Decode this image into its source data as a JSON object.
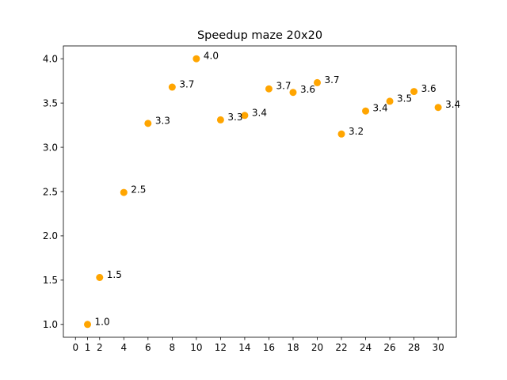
{
  "chart_data": {
    "type": "scatter",
    "title": "Speedup maze 20x20",
    "xlabel": "",
    "ylabel": "",
    "x": [
      1,
      2,
      4,
      6,
      8,
      10,
      12,
      14,
      16,
      18,
      20,
      22,
      24,
      26,
      28,
      30
    ],
    "y": [
      1.0,
      1.53,
      2.49,
      3.27,
      3.68,
      4.0,
      3.31,
      3.36,
      3.66,
      3.62,
      3.73,
      3.15,
      3.41,
      3.52,
      3.63,
      3.45
    ],
    "point_labels": [
      "1.0",
      "1.5",
      "2.5",
      "3.3",
      "3.7",
      "4.0",
      "3.3",
      "3.4",
      "3.7",
      "3.6",
      "3.7",
      "3.2",
      "3.4",
      "3.5",
      "3.6",
      "3.4"
    ],
    "xticks": [
      0,
      1,
      2,
      4,
      6,
      8,
      10,
      12,
      14,
      16,
      18,
      20,
      22,
      24,
      26,
      28,
      30
    ],
    "xtick_labels": [
      "0",
      "1",
      "2",
      "4",
      "6",
      "8",
      "10",
      "12",
      "14",
      "16",
      "18",
      "20",
      "22",
      "24",
      "26",
      "28",
      "30"
    ],
    "yticks": [
      1.0,
      1.5,
      2.0,
      2.5,
      3.0,
      3.5,
      4.0
    ],
    "ytick_labels": [
      "1.0",
      "1.5",
      "2.0",
      "2.5",
      "3.0",
      "3.5",
      "4.0"
    ],
    "xlim": [
      -1.0,
      31.5
    ],
    "ylim": [
      0.855,
      4.145
    ],
    "grid": false,
    "legend": "none",
    "marker_color": "#ffa500"
  }
}
